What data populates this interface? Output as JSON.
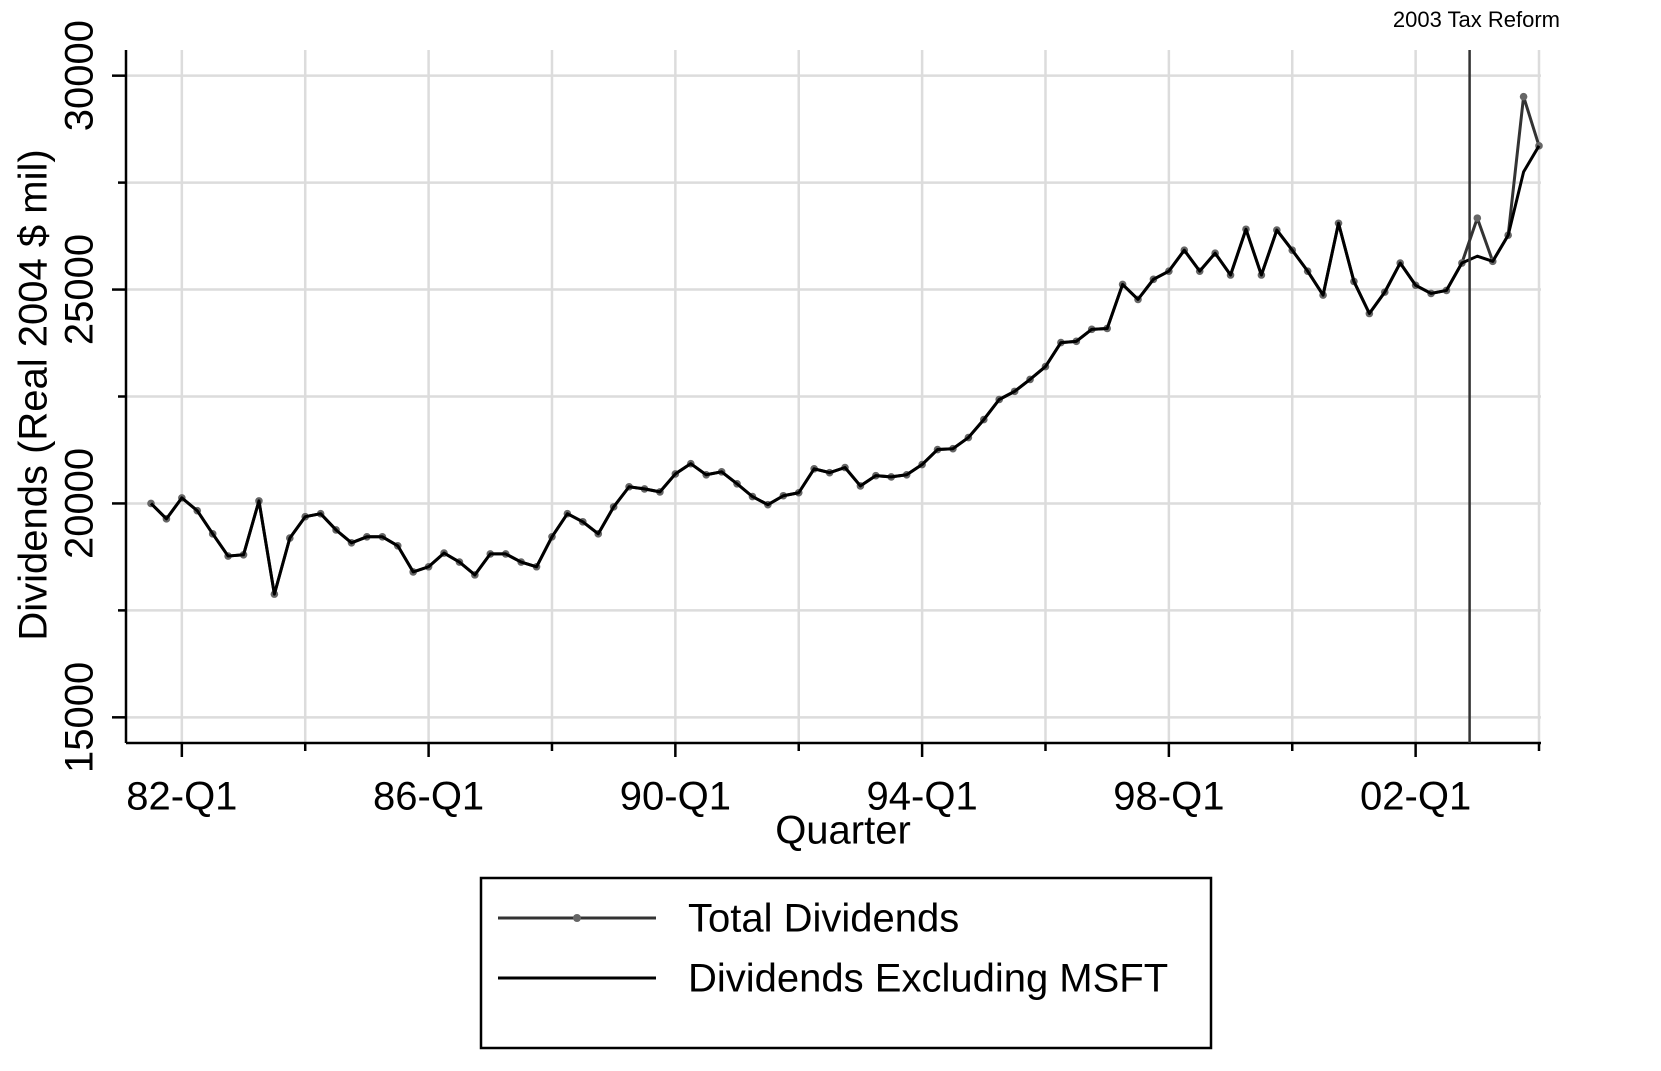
{
  "chart_data": {
    "type": "line",
    "x_label": "Quarter",
    "y_label": "Dividends (Real 2004 $ mil)",
    "categories": [
      null,
      null,
      "82-Q1",
      null,
      null,
      null,
      null,
      null,
      null,
      null,
      null,
      null,
      null,
      null,
      null,
      null,
      null,
      null,
      "86-Q1",
      null,
      null,
      null,
      null,
      null,
      null,
      null,
      null,
      null,
      null,
      null,
      null,
      null,
      null,
      null,
      "90-Q1",
      null,
      null,
      null,
      null,
      null,
      null,
      null,
      null,
      null,
      null,
      null,
      null,
      null,
      null,
      null,
      "94-Q1",
      null,
      null,
      null,
      null,
      null,
      null,
      null,
      null,
      null,
      null,
      null,
      null,
      null,
      null,
      null,
      "98-Q1",
      null,
      null,
      null,
      null,
      null,
      null,
      null,
      null,
      null,
      null,
      null,
      null,
      null,
      null,
      null,
      "02-Q1",
      null,
      null,
      null,
      null,
      null,
      null,
      null,
      null
    ],
    "series": [
      {
        "name": "Total Dividends",
        "color": "#333333",
        "marker_color": "#666666",
        "markers": true,
        "values": [
          20000,
          19640,
          20130,
          19830,
          19290,
          18770,
          18800,
          20060,
          17880,
          19190,
          19690,
          19760,
          19380,
          19080,
          19220,
          19220,
          19010,
          18400,
          18520,
          18840,
          18630,
          18330,
          18820,
          18820,
          18630,
          18520,
          19220,
          19760,
          19570,
          19290,
          19920,
          20390,
          20340,
          20270,
          20690,
          20930,
          20670,
          20740,
          20460,
          20160,
          19970,
          20180,
          20250,
          20810,
          20720,
          20840,
          20410,
          20650,
          20620,
          20670,
          20910,
          21260,
          21280,
          21540,
          21960,
          22430,
          22620,
          22900,
          23200,
          23760,
          23790,
          24070,
          24090,
          25120,
          24770,
          25240,
          25430,
          25920,
          25430,
          25850,
          25340,
          26410,
          25340,
          26390,
          25920,
          25430,
          24870,
          26550,
          25190,
          24440,
          24940,
          25620,
          25100,
          24910,
          24980,
          25620,
          26670,
          25660,
          26270,
          29510,
          28360
        ]
      },
      {
        "name": "Dividends Excluding MSFT",
        "color": "#000000",
        "markers": false,
        "values": [
          20000,
          19640,
          20130,
          19830,
          19290,
          18770,
          18800,
          20060,
          17880,
          19190,
          19690,
          19760,
          19380,
          19080,
          19220,
          19220,
          19010,
          18400,
          18520,
          18840,
          18630,
          18330,
          18820,
          18820,
          18630,
          18520,
          19220,
          19760,
          19570,
          19290,
          19920,
          20390,
          20340,
          20270,
          20690,
          20930,
          20670,
          20740,
          20460,
          20160,
          19970,
          20180,
          20250,
          20810,
          20720,
          20840,
          20410,
          20650,
          20620,
          20670,
          20910,
          21260,
          21280,
          21540,
          21960,
          22430,
          22620,
          22900,
          23200,
          23760,
          23790,
          24070,
          24090,
          25120,
          24770,
          25240,
          25430,
          25920,
          25430,
          25850,
          25340,
          26410,
          25340,
          26390,
          25920,
          25430,
          24870,
          26550,
          25190,
          24440,
          24940,
          25620,
          25100,
          24910,
          24980,
          25620,
          25780,
          25660,
          26270,
          27750,
          28360
        ]
      }
    ],
    "ylim": [
      14400,
      30600
    ],
    "yticks": [
      15000,
      20000,
      25000,
      30000
    ],
    "grid": true,
    "annotation": {
      "text": "2003 Tax Reform",
      "x": 85.5
    }
  }
}
